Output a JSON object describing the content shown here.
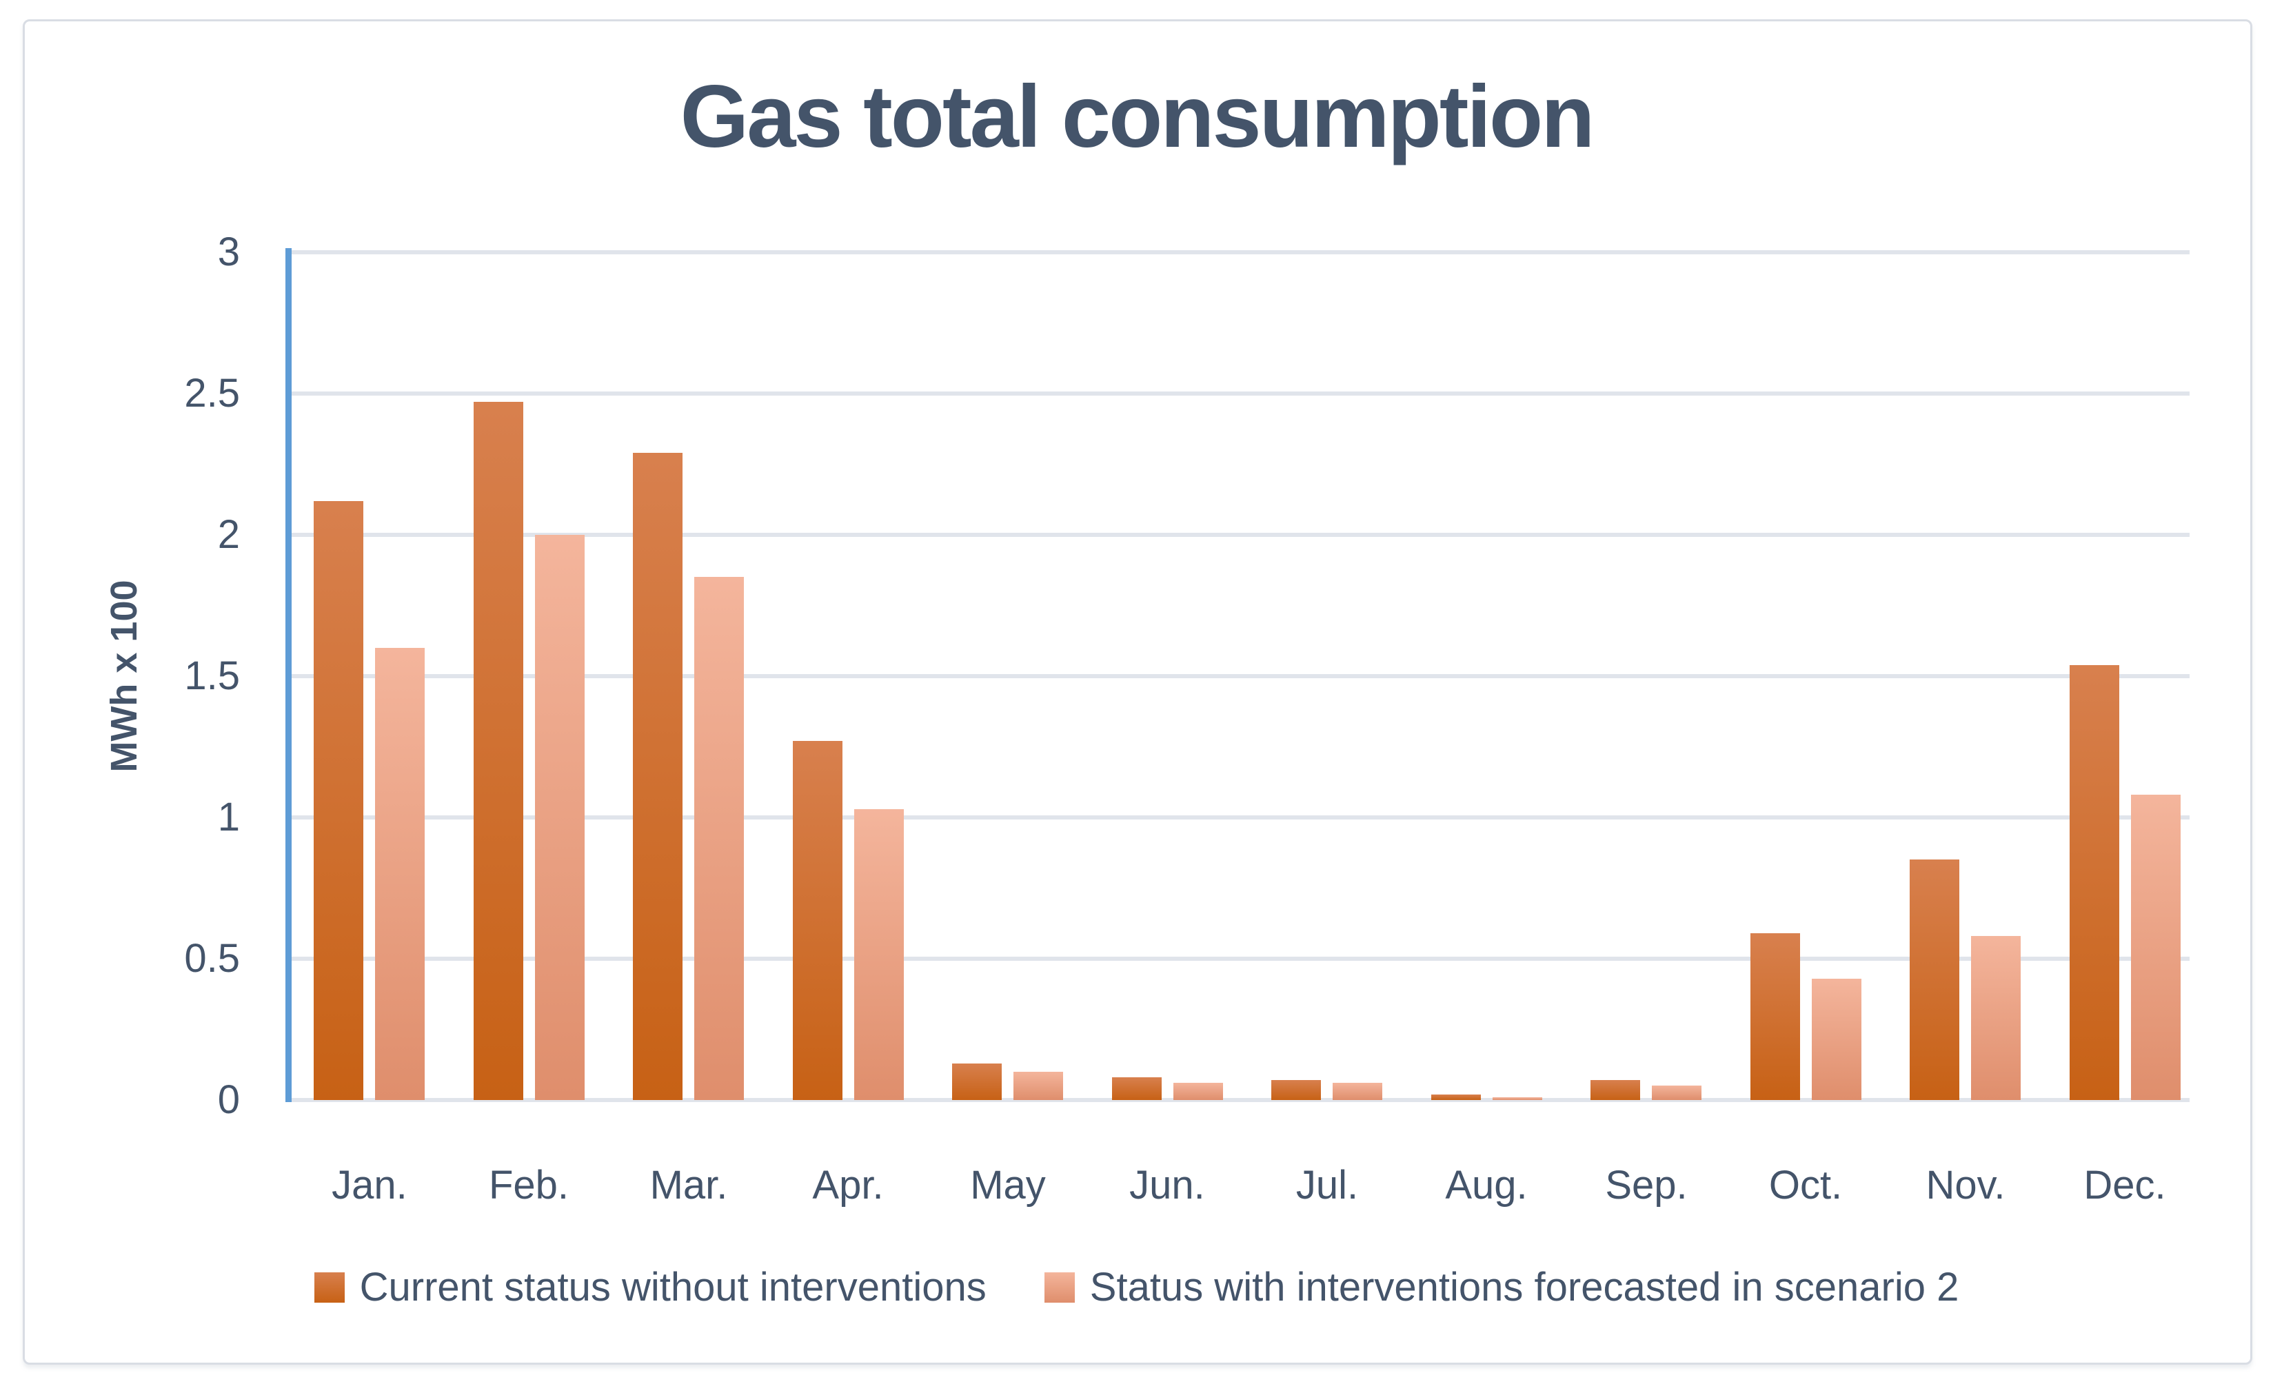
{
  "title": "Gas total consumption",
  "y_axis": {
    "title": "MWh x 100",
    "tick_labels": [
      "3",
      "2.5",
      "2",
      "1.5",
      "1",
      "0.5",
      "0"
    ]
  },
  "colors": {
    "axis_line": "#5e9cd6",
    "gridline": "#e0e4eb",
    "text": "#44546a",
    "frame_border": "#d9dde4",
    "series1_top": "#d8804e",
    "series1_bottom": "#c76115",
    "series2_top": "#f4b59c",
    "series2_bottom": "#df8e6c"
  },
  "chart_data": {
    "type": "bar",
    "title": "Gas total consumption",
    "xlabel": "",
    "ylabel": "MWh x 100",
    "ylim": [
      0,
      3
    ],
    "y_ticks": [
      3,
      2.5,
      2,
      1.5,
      1,
      0.5,
      0
    ],
    "grid": true,
    "legend_position": "bottom",
    "categories": [
      "Jan.",
      "Feb.",
      "Mar.",
      "Apr.",
      "May",
      "Jun.",
      "Jul.",
      "Aug.",
      "Sep.",
      "Oct.",
      "Nov.",
      "Dec."
    ],
    "series": [
      {
        "name": "Current status without interventions",
        "key": "current",
        "color_top": "#d8804e",
        "color_bottom": "#c76115",
        "values": [
          2.12,
          2.47,
          2.29,
          1.27,
          0.13,
          0.08,
          0.07,
          0.02,
          0.07,
          0.59,
          0.85,
          1.54
        ]
      },
      {
        "name": "Status with interventions forecasted in scenario 2",
        "key": "scenario2",
        "color_top": "#f4b59c",
        "color_bottom": "#df8e6c",
        "values": [
          1.6,
          2.0,
          1.85,
          1.03,
          0.1,
          0.06,
          0.06,
          0.01,
          0.05,
          0.43,
          0.58,
          1.08
        ]
      }
    ]
  }
}
